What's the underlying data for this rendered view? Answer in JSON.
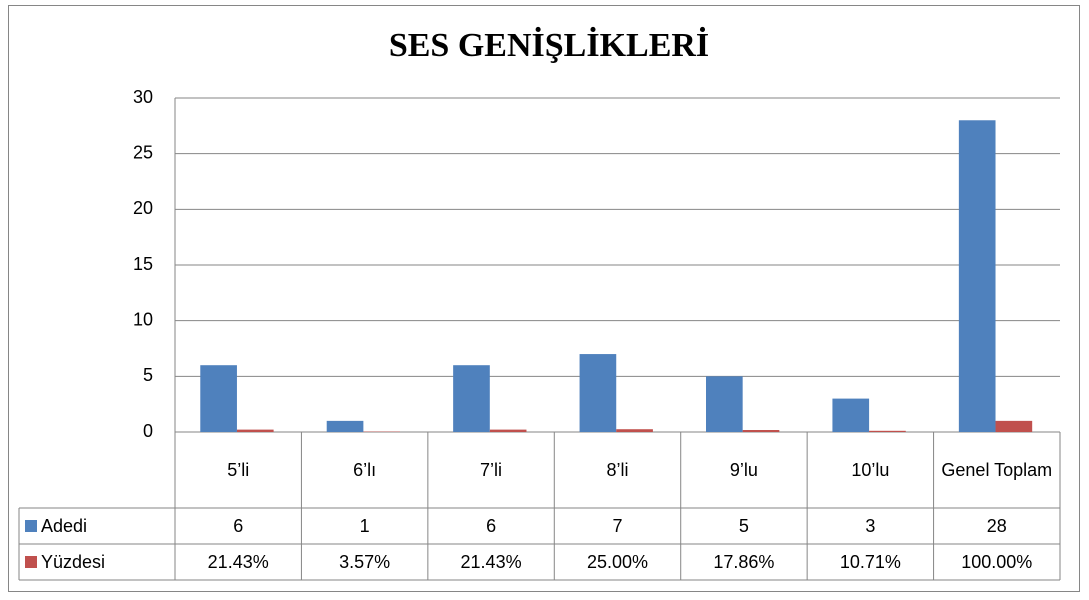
{
  "chart_data": {
    "type": "bar",
    "title": "SES GENİŞLİKLERİ",
    "categories": [
      "5’li",
      "6’lı",
      "7’li",
      "8’li",
      "9’lu",
      "10’lu",
      "Genel Toplam"
    ],
    "series": [
      {
        "name": "Adedi",
        "color": "#4f81bd",
        "values": [
          6,
          1,
          6,
          7,
          5,
          3,
          28
        ]
      },
      {
        "name": "Yüzdesi",
        "color": "#c0504d",
        "values": [
          0.2143,
          0.0357,
          0.2143,
          0.25,
          0.1786,
          0.1071,
          1
        ],
        "value_labels": [
          "21.43%",
          "3.57%",
          "21.43%",
          "25.00%",
          "17.86%",
          "10.71%",
          "100.00%"
        ]
      }
    ],
    "ylim": [
      0,
      30
    ],
    "yticks": [
      0,
      5,
      10,
      15,
      20,
      25,
      30
    ],
    "grid": true,
    "legend": "data-table"
  }
}
